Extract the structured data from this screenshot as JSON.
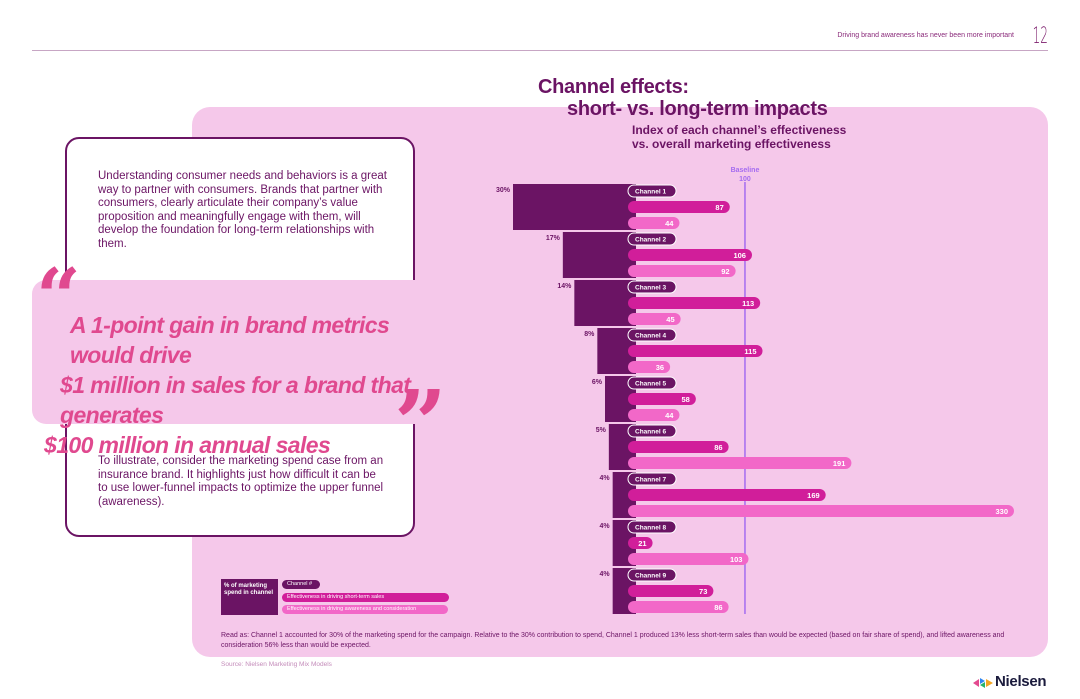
{
  "header": {
    "running_title": "Driving brand awareness has never been more important",
    "page_number": "12"
  },
  "title": {
    "line1": "Channel effects:",
    "line2": "short- vs. long-term impacts"
  },
  "subtitle": {
    "line1": "Index of each channel’s effectiveness",
    "line2": "vs. overall marketing effectiveness"
  },
  "intro_text": "Understanding consumer needs and behaviors is a great way to partner with consumers. Brands that partner with consumers, clearly articulate their company’s value proposition and meaningfully engage with them, will develop the foundation for long-term relationships with them.",
  "quote": {
    "open_mark": "“",
    "line1": "A 1-point gain in brand metrics would drive",
    "line2": "$1 million in sales for a brand that generates",
    "line3": "$100 million in annual sales",
    "close_mark": "”"
  },
  "illustrate_text": "To illustrate, consider the marketing spend case from an insurance brand. It highlights just how difficult it can be to use lower-funnel impacts to optimize the upper funnel (awareness).",
  "legend": {
    "spend": "% of marketing spend in channel",
    "channel": "Channel #",
    "short_term": "Effectiveness in driving short-term sales",
    "long_term": "Effectiveness in driving awareness and consideration"
  },
  "read_as": "Read as: Channel 1 accounted for 30% of the marketing spend for the campaign. Relative to the 30% contribution to spend, Channel 1 produced 13% less short-term sales than would be expected (based on fair share of spend), and lifted awareness and consideration 56% less than would be expected.",
  "source": "Source: Nielsen Marketing Mix Models",
  "logo": {
    "text": "Nielsen"
  },
  "colors": {
    "dark": "#6b1464",
    "short_term": "#d11e9a",
    "long_term": "#f268c8",
    "panel": "#f5c8ea",
    "baseline": "#a56cf0",
    "quote": "#e0498f"
  },
  "chart_data": {
    "type": "bar",
    "baseline": {
      "label": "Baseline",
      "value": 100
    },
    "categories": [
      "Channel 1",
      "Channel 2",
      "Channel 3",
      "Channel 4",
      "Channel 5",
      "Channel 6",
      "Channel 7",
      "Channel 8",
      "Channel 9"
    ],
    "series": [
      {
        "key": "spend",
        "values": [
          30,
          17,
          14,
          8,
          6,
          5,
          4,
          4,
          4
        ],
        "labels": [
          "30%",
          "17%",
          "14%",
          "8%",
          "6%",
          "5%",
          "4%",
          "4%",
          "4%"
        ]
      },
      {
        "key": "short_term",
        "values": [
          87,
          106,
          113,
          115,
          58,
          86,
          169,
          21,
          73
        ]
      },
      {
        "key": "long_term",
        "values": [
          44,
          92,
          45,
          36,
          44,
          191,
          330,
          103,
          86
        ]
      }
    ],
    "index_range": [
      0,
      330
    ]
  }
}
